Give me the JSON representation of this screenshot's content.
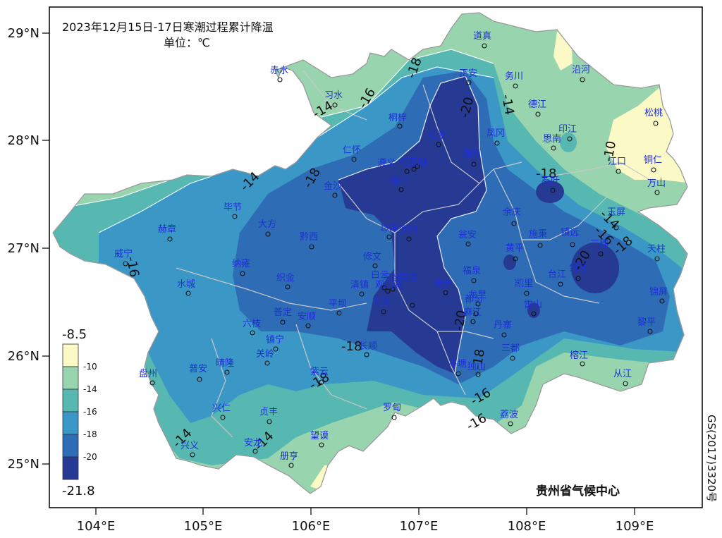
{
  "title": "2023年12月15日-17日寒潮过程累计降温",
  "unit": "单位：℃",
  "credit": "贵州省气候中心",
  "approval_code": "GS(2017)3320号",
  "axes": {
    "lat_ticks": [
      "29°N",
      "28°N",
      "27°N",
      "26°N",
      "25°N"
    ],
    "lon_ticks": [
      "104°E",
      "105°E",
      "106°E",
      "107°E",
      "108°E",
      "109°E"
    ]
  },
  "legend": {
    "max": "-8.5",
    "min": "-21.8",
    "labels": [
      "-10",
      "-14",
      "-16",
      "-18",
      "-20"
    ],
    "colors": [
      "#fbf9c6",
      "#98d4ae",
      "#56b8b1",
      "#3a97c6",
      "#2e6db5",
      "#263a93"
    ]
  },
  "contour_labels": [
    "-14",
    "-16",
    "-18",
    "-20",
    "-18",
    "-14",
    "-14",
    "-16",
    "-18",
    "-10",
    "-14",
    "-16",
    "-18",
    "-20",
    "-16",
    "-20",
    "-18",
    "-18",
    "-18",
    "-16",
    "-14",
    "-14",
    "-14"
  ],
  "cities": [
    "赤水",
    "习水",
    "道真",
    "务川",
    "沿河",
    "正安",
    "桐梓",
    "德江",
    "松桃",
    "绥阳",
    "凤冈",
    "印江",
    "思南",
    "仁怀",
    "遵义",
    "红花岗",
    "汇川",
    "播州",
    "湄潭",
    "江口",
    "铜仁",
    "金沙",
    "石阡",
    "万山",
    "毕节",
    "玉屏",
    "余庆",
    "赫章",
    "大方",
    "息烽",
    "开阳",
    "瓮安",
    "施秉",
    "镇远",
    "三穗",
    "天柱",
    "威宁",
    "黔西",
    "纳雍",
    "修文",
    "黄平",
    "织金",
    "白云",
    "乌当",
    "福泉",
    "台江",
    "剑河",
    "清镇",
    "观山湖",
    "南明",
    "贵定",
    "凯里",
    "锦屏",
    "水城",
    "平坝",
    "花溪",
    "龙里",
    "麻江",
    "雷山",
    "普定",
    "安顺",
    "六枝",
    "都匀",
    "丹寨",
    "黎平",
    "镇宁",
    "长顺",
    "三都",
    "晴隆",
    "关岭",
    "平塘",
    "独山",
    "榕江",
    "从江",
    "盘州",
    "普安",
    "紫云",
    "兴仁",
    "贞丰",
    "罗甸",
    "荔波",
    "兴义",
    "安龙",
    "望谟",
    "册亨"
  ]
}
